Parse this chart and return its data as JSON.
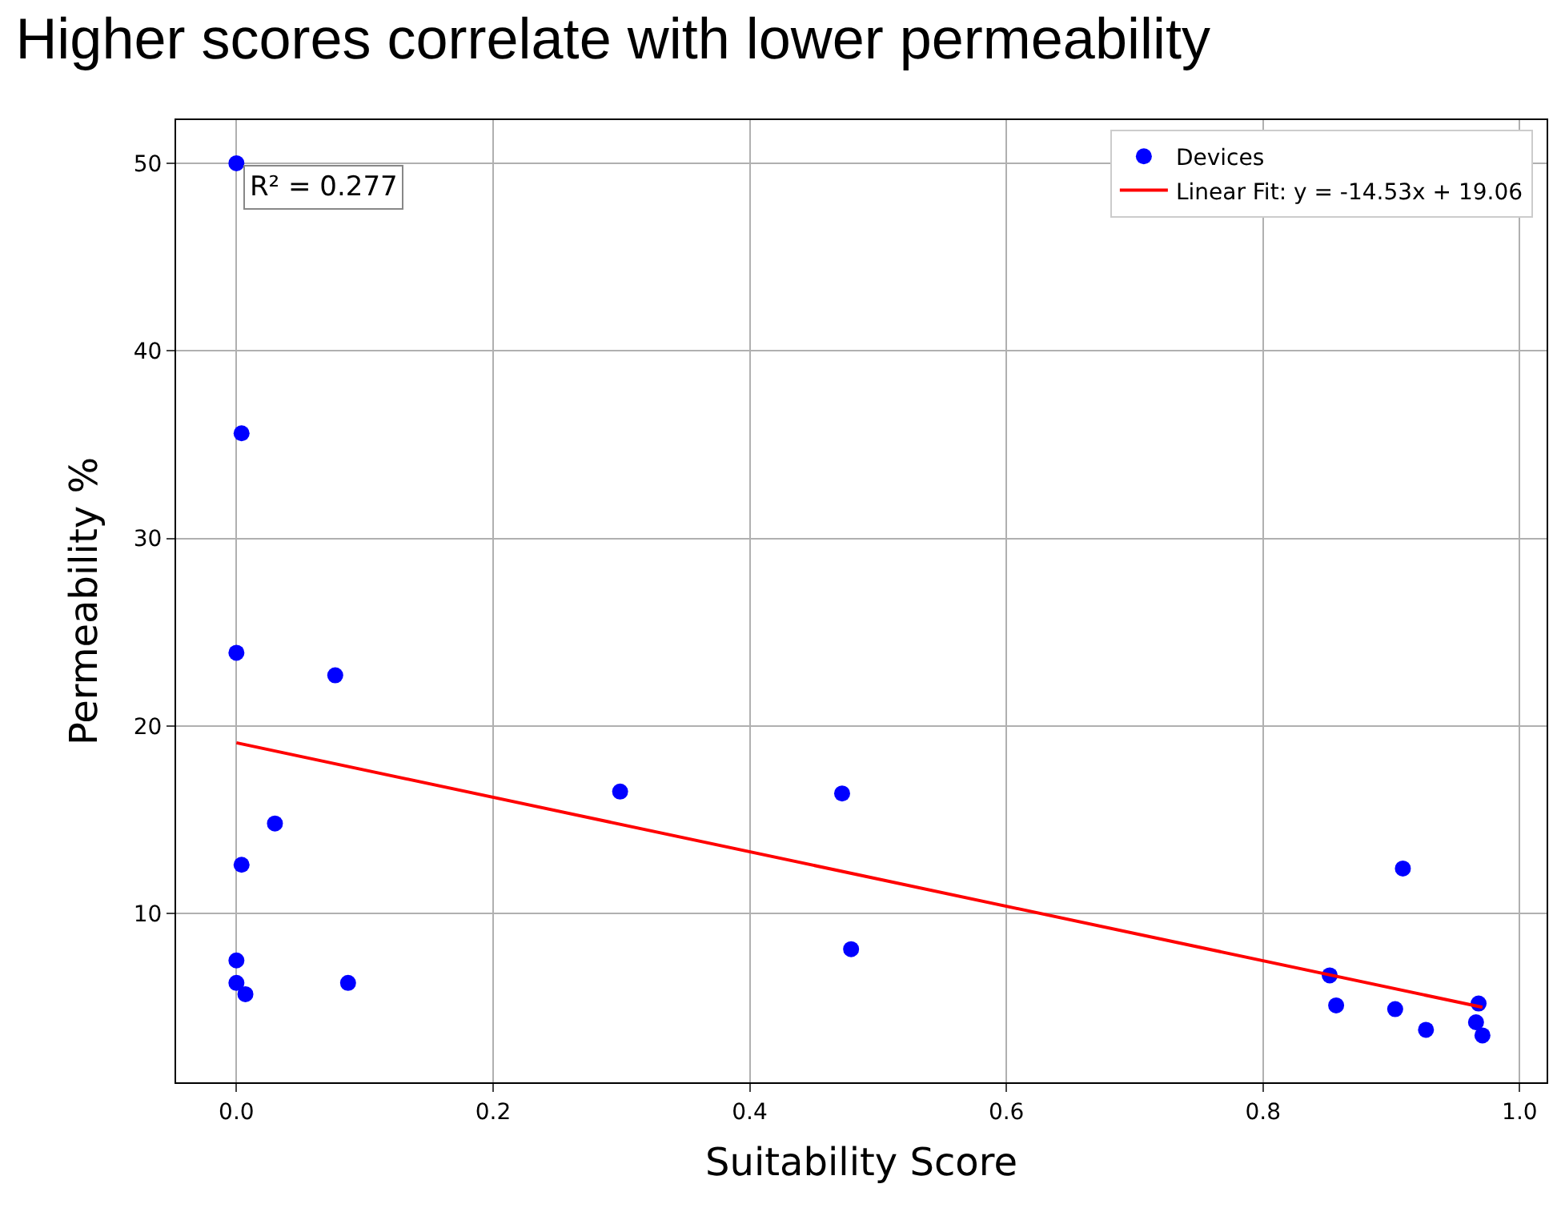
{
  "chart_data": {
    "type": "scatter",
    "title": "Higher scores correlate with lower permeability",
    "xlabel": "Suitability Score",
    "ylabel": "Permeability %",
    "series": [
      {
        "name": "Devices",
        "marker": "circle",
        "color": "#0000ff",
        "x": [
          0.0,
          0.004,
          0.0,
          0.077,
          0.03,
          0.004,
          0.0,
          0.0,
          0.007,
          0.087,
          0.299,
          0.472,
          0.479,
          0.909,
          0.852,
          0.857,
          0.903,
          0.927,
          0.968,
          0.966,
          0.971
        ],
        "values": [
          50.0,
          35.6,
          23.9,
          22.7,
          14.8,
          12.6,
          7.5,
          6.3,
          5.7,
          6.3,
          16.5,
          16.4,
          8.1,
          12.4,
          6.7,
          5.1,
          4.9,
          3.8,
          5.2,
          4.2,
          3.5
        ]
      },
      {
        "name": "Linear Fit: y = -14.53x + 19.06",
        "type": "line",
        "marker": "none",
        "line_style": "solid",
        "color": "#ff0000",
        "x": [
          0.0,
          0.971
        ],
        "values": [
          19.1,
          5.0
        ]
      }
    ],
    "annotations": [
      "R² = 0.277"
    ],
    "xlim": [
      -0.047,
      1.021
    ],
    "ylim": [
      1.0,
      52.3
    ],
    "xticks": [
      {
        "value": 0.0,
        "label": "0.0"
      },
      {
        "value": 0.2,
        "label": "0.2"
      },
      {
        "value": 0.4,
        "label": "0.4"
      },
      {
        "value": 0.6,
        "label": "0.6"
      },
      {
        "value": 0.8,
        "label": "0.8"
      },
      {
        "value": 1.0,
        "label": "1.0"
      }
    ],
    "yticks": [
      10,
      20,
      30,
      40,
      50
    ],
    "grid": true,
    "legend": "top right"
  }
}
